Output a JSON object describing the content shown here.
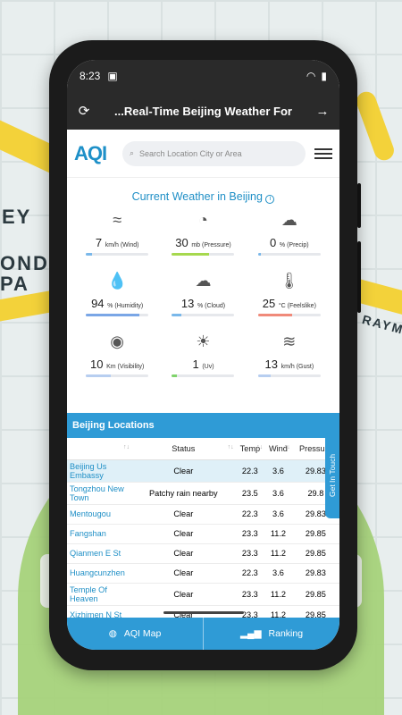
{
  "status": {
    "time": "8:23"
  },
  "appbar": {
    "title": "...Real-Time Beijing Weather For"
  },
  "header": {
    "logo": "AQI",
    "search_placeholder": "Search Location City or Area"
  },
  "weather": {
    "title": "Current Weather in Beijing",
    "metrics": [
      {
        "value": "7",
        "unit": "km/h",
        "label": "(Wind)",
        "icon": "wind-icon",
        "color": "#7ab8ea",
        "level": 0.1
      },
      {
        "value": "30",
        "unit": "mb",
        "label": "(Pressure)",
        "icon": "gauge-icon",
        "color": "#a6d84e",
        "level": 0.6
      },
      {
        "value": "0",
        "unit": "%",
        "label": "(Precip)",
        "icon": "rain-cloud-icon",
        "color": "#7ab8ea",
        "level": 0.05
      },
      {
        "value": "94",
        "unit": "%",
        "label": "(Humidity)",
        "icon": "humidity-icon",
        "color": "#7aa6e6",
        "level": 0.85
      },
      {
        "value": "13",
        "unit": "%",
        "label": "(Cloud)",
        "icon": "cloud-icon",
        "color": "#7ab8ea",
        "level": 0.15
      },
      {
        "value": "25",
        "unit": "°C",
        "label": "(Feelslike)",
        "icon": "thermometer-icon",
        "color": "#f08a7a",
        "level": 0.55
      },
      {
        "value": "10",
        "unit": "Km",
        "label": "(Visibility)",
        "icon": "eye-icon",
        "color": "#b7cef0",
        "level": 0.4
      },
      {
        "value": "1",
        "unit": "",
        "label": "(Uv)",
        "icon": "uv-icon",
        "color": "#7fd36b",
        "level": 0.08
      },
      {
        "value": "13",
        "unit": "km/h",
        "label": "(Gust)",
        "icon": "gust-icon",
        "color": "#b7cef0",
        "level": 0.2
      }
    ]
  },
  "locations": {
    "title": "Beijing Locations",
    "columns": [
      "Status",
      "Temp",
      "Wind",
      "Pressure"
    ],
    "rows": [
      {
        "name": "Beijing Us Embassy",
        "status": "Clear",
        "temp": "22.3",
        "wind": "3.6",
        "pressure": "29.83",
        "selected": true
      },
      {
        "name": "Tongzhou New Town",
        "status": "Patchy rain nearby",
        "temp": "23.5",
        "wind": "3.6",
        "pressure": "29.8"
      },
      {
        "name": "Mentougou",
        "status": "Clear",
        "temp": "22.3",
        "wind": "3.6",
        "pressure": "29.83"
      },
      {
        "name": "Fangshan",
        "status": "Clear",
        "temp": "23.3",
        "wind": "11.2",
        "pressure": "29.85"
      },
      {
        "name": "Qianmen E St",
        "status": "Clear",
        "temp": "23.3",
        "wind": "11.2",
        "pressure": "29.85"
      },
      {
        "name": "Huangcunzhen",
        "status": "Clear",
        "temp": "22.3",
        "wind": "3.6",
        "pressure": "29.83"
      },
      {
        "name": "Temple Of Heaven",
        "status": "Clear",
        "temp": "23.3",
        "wind": "11.2",
        "pressure": "29.85"
      },
      {
        "name": "Xizhimen N St",
        "status": "Clear",
        "temp": "23.3",
        "wind": "11.2",
        "pressure": "29.85"
      }
    ],
    "get_in_touch": "Get In Touch"
  },
  "bottom_nav": {
    "map_label": "AQI Map",
    "ranking_label": "Ranking"
  },
  "map_labels": [
    "EY",
    "ONDS",
    "PA",
    "RAYM"
  ]
}
